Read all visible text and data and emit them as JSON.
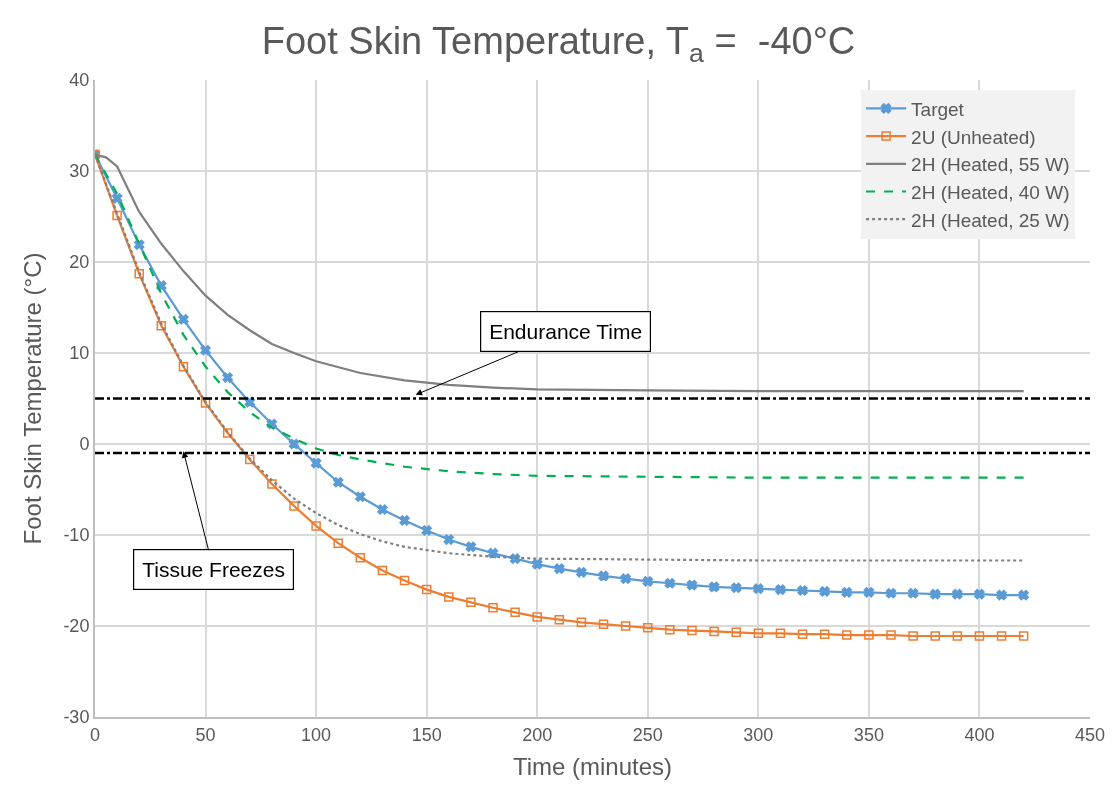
{
  "chart_data": {
    "type": "line",
    "title": "Foot Skin Temperature, T$_{a}$ =  -40°C",
    "xlabel": "Time (minutes)",
    "ylabel": "Foot Skin Temperature (°C)",
    "xlim": [
      0,
      450
    ],
    "xticks": [
      0,
      50,
      100,
      150,
      200,
      250,
      300,
      350,
      400,
      450
    ],
    "ylim": [
      -30,
      40
    ],
    "yticks": [
      -30,
      -20,
      -10,
      0,
      10,
      20,
      30,
      40
    ],
    "grid": true,
    "legend": "top right",
    "series": [
      {
        "name": "Target",
        "color": "#5b9bd5",
        "marker": "cross",
        "line_style": "solid",
        "x": [
          0,
          10,
          20,
          30,
          40,
          50,
          60,
          70,
          80,
          90,
          100,
          110,
          120,
          130,
          140,
          150,
          160,
          170,
          180,
          190,
          200,
          210,
          220,
          230,
          240,
          250,
          260,
          270,
          280,
          290,
          300,
          310,
          320,
          330,
          340,
          350,
          360,
          370,
          380,
          390,
          400,
          410,
          420
        ],
        "values": [
          31.8,
          27,
          21.9,
          17.4,
          13.7,
          10.3,
          7.3,
          4.6,
          2.2,
          0.0,
          -2.1,
          -4.2,
          -5.8,
          -7.2,
          -8.4,
          -9.5,
          -10.5,
          -11.3,
          -12.0,
          -12.6,
          -13.2,
          -13.7,
          -14.1,
          -14.5,
          -14.8,
          -15.1,
          -15.3,
          -15.5,
          -15.7,
          -15.8,
          -15.9,
          -16.0,
          -16.1,
          -16.2,
          -16.3,
          -16.3,
          -16.4,
          -16.4,
          -16.5,
          -16.5,
          -16.5,
          -16.6,
          -16.6
        ]
      },
      {
        "name": "2U (Unheated)",
        "color": "#ed7d31",
        "marker": "square",
        "line_style": "solid",
        "x": [
          0,
          10,
          20,
          30,
          40,
          50,
          60,
          70,
          80,
          90,
          100,
          110,
          120,
          130,
          140,
          150,
          160,
          170,
          180,
          190,
          200,
          210,
          220,
          230,
          240,
          250,
          260,
          270,
          280,
          290,
          300,
          310,
          320,
          330,
          340,
          350,
          360,
          370,
          380,
          390,
          400,
          410,
          420
        ],
        "values": [
          31.8,
          25.1,
          18.7,
          13.0,
          8.5,
          4.5,
          1.2,
          -1.7,
          -4.4,
          -6.8,
          -9.0,
          -10.9,
          -12.5,
          -13.9,
          -15.0,
          -16.0,
          -16.8,
          -17.4,
          -18.0,
          -18.5,
          -19.0,
          -19.3,
          -19.6,
          -19.8,
          -20.0,
          -20.2,
          -20.4,
          -20.5,
          -20.6,
          -20.7,
          -20.8,
          -20.8,
          -20.9,
          -20.9,
          -21.0,
          -21.0,
          -21.0,
          -21.1,
          -21.1,
          -21.1,
          -21.1,
          -21.1,
          -21.1
        ]
      },
      {
        "name": "2H (Heated, 55 W)",
        "color": "#7f7f7f",
        "marker": "none",
        "line_style": "solid",
        "x": [
          0,
          5,
          10,
          15,
          20,
          30,
          40,
          50,
          60,
          70,
          80,
          90,
          100,
          120,
          140,
          160,
          180,
          200,
          250,
          300,
          350,
          420
        ],
        "values": [
          31.8,
          31.5,
          30.5,
          28,
          25.5,
          22,
          19,
          16.3,
          14.2,
          12.5,
          11,
          10,
          9.1,
          7.8,
          7,
          6.5,
          6.2,
          6.0,
          5.9,
          5.8,
          5.8,
          5.8
        ]
      },
      {
        "name": "2H (Heated, 40 W)",
        "color": "#00b050",
        "marker": "none",
        "line_style": "dashed",
        "x": [
          0,
          10,
          20,
          30,
          40,
          50,
          60,
          70,
          80,
          90,
          100,
          110,
          120,
          140,
          160,
          180,
          200,
          250,
          300,
          420
        ],
        "values": [
          31.8,
          27.5,
          22,
          16.5,
          12,
          8.5,
          5.7,
          3.5,
          1.8,
          0.6,
          -0.5,
          -1.2,
          -1.7,
          -2.5,
          -3.0,
          -3.3,
          -3.5,
          -3.6,
          -3.7,
          -3.7
        ]
      },
      {
        "name": "2H (Heated, 25 W)",
        "color": "#7f7f7f",
        "marker": "none",
        "line_style": "dotted",
        "x": [
          0,
          10,
          20,
          30,
          40,
          50,
          60,
          70,
          80,
          90,
          100,
          110,
          120,
          130,
          140,
          160,
          180,
          200,
          250,
          300,
          420
        ],
        "values": [
          31.8,
          25.3,
          18.9,
          13.2,
          8.6,
          4.6,
          1.3,
          -1.6,
          -4.0,
          -6.0,
          -7.6,
          -8.9,
          -9.9,
          -10.7,
          -11.3,
          -12.0,
          -12.4,
          -12.6,
          -12.7,
          -12.8,
          -12.8
        ]
      }
    ],
    "ref_lines": [
      {
        "axis": "y",
        "value": 5,
        "color": "#000000",
        "line_style": "dashdot"
      },
      {
        "axis": "y",
        "value": -1,
        "color": "#000000",
        "line_style": "dashdot"
      }
    ],
    "annotations": [
      {
        "text": "Endurance Time",
        "x": 145,
        "y": 5.4
      },
      {
        "text": "Tissue Freezes",
        "x": 40,
        "y": -0.8
      }
    ]
  }
}
